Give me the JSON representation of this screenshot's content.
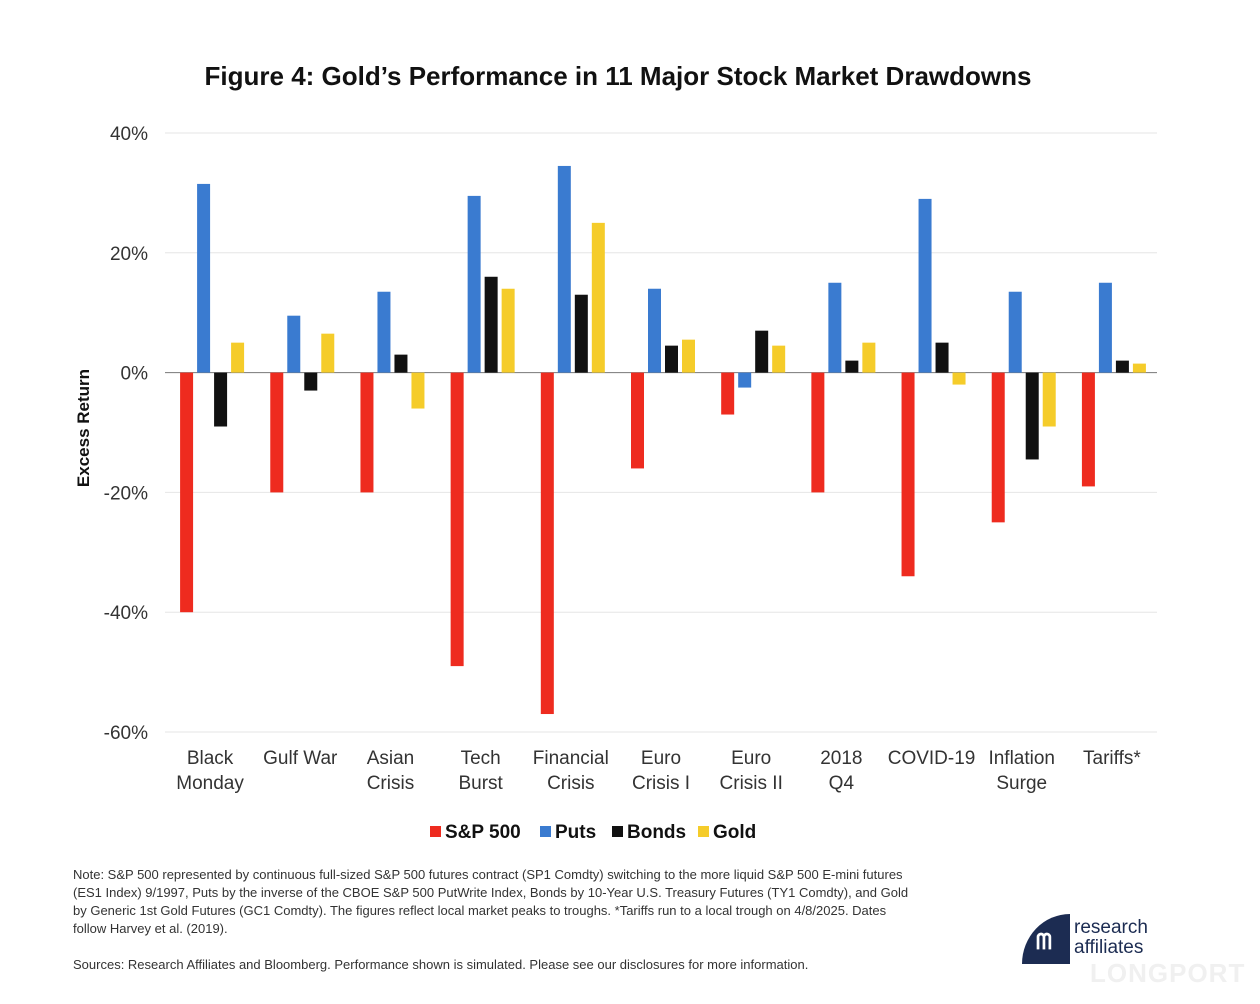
{
  "chart_data": {
    "type": "bar",
    "title": "Figure 4: Gold’s Performance in 11 Major Stock Market Drawdowns",
    "xlabel": "",
    "ylabel": "Excess Return",
    "ylim": [
      -60,
      40
    ],
    "yticks": [
      40,
      20,
      0,
      -20,
      -40,
      -60
    ],
    "ytick_labels": [
      "40%",
      "20%",
      "0%",
      "-20%",
      "-40%",
      "-60%"
    ],
    "grid": true,
    "legend_position": "bottom-center",
    "categories": [
      [
        "Black",
        "Monday"
      ],
      [
        "Gulf War"
      ],
      [
        "Asian",
        "Crisis"
      ],
      [
        "Tech",
        "Burst"
      ],
      [
        "Financial",
        "Crisis"
      ],
      [
        "Euro",
        "Crisis I"
      ],
      [
        "Euro",
        "Crisis II"
      ],
      [
        "2018",
        "Q4"
      ],
      [
        "COVID-19"
      ],
      [
        "Inflation",
        "Surge"
      ],
      [
        "Tariffs*"
      ]
    ],
    "series": [
      {
        "name": "S&P 500",
        "color": "#ee2b1f",
        "values": [
          -40,
          -20,
          -20,
          -49,
          -57,
          -16,
          -7,
          -20,
          -34,
          -25,
          -19
        ]
      },
      {
        "name": "Puts",
        "color": "#3a7bd0",
        "values": [
          31.5,
          9.5,
          13.5,
          29.5,
          34.5,
          14,
          -2.5,
          15,
          29,
          13.5,
          15
        ]
      },
      {
        "name": "Bonds",
        "color": "#111111",
        "values": [
          -9,
          -3,
          3,
          16,
          13,
          4.5,
          7,
          2,
          5,
          -14.5,
          2
        ]
      },
      {
        "name": "Gold",
        "color": "#f5cc2a",
        "values": [
          5,
          6.5,
          -6,
          14,
          25,
          5.5,
          4.5,
          5,
          -2,
          -9,
          1.5
        ]
      }
    ]
  },
  "notes": "Note: S&P 500 represented by continuous full-sized S&P 500 futures contract (SP1 Comdty) switching to the more liquid S&P 500 E-mini futures (ES1 Index) 9/1997, Puts by the inverse of the CBOE S&P 500 PutWrite Index, Bonds by 10-Year U.S. Treasury Futures (TY1 Comdty), and Gold by Generic 1st Gold Futures (GC1 Comdty). The figures reflect local market peaks to troughs. *Tariffs run to a local trough on 4/8/2025. Dates follow Harvey et al. (2019).",
  "sources": "Sources: Research Affiliates and Bloomberg. Performance shown is simulated. Please see our disclosures for more information.",
  "logo": {
    "mark": "ᗰ",
    "line1": "research",
    "line2": "affiliates"
  },
  "watermark": "LONGPORT",
  "colors": {
    "brand": "#1c2c52"
  }
}
